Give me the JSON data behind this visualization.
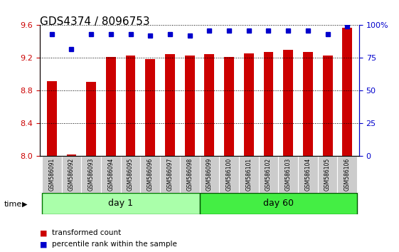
{
  "title": "GDS4374 / 8096753",
  "samples": [
    "GSM586091",
    "GSM586092",
    "GSM586093",
    "GSM586094",
    "GSM586095",
    "GSM586096",
    "GSM586097",
    "GSM586098",
    "GSM586099",
    "GSM586100",
    "GSM586101",
    "GSM586102",
    "GSM586103",
    "GSM586104",
    "GSM586105",
    "GSM586106"
  ],
  "red_values": [
    8.92,
    8.02,
    8.91,
    9.21,
    9.23,
    9.19,
    9.25,
    9.23,
    9.25,
    9.21,
    9.26,
    9.27,
    9.3,
    9.27,
    9.23,
    9.57
  ],
  "blue_values": [
    93,
    82,
    93,
    93,
    93,
    92,
    93,
    92,
    96,
    96,
    96,
    96,
    96,
    96,
    93,
    99
  ],
  "ylim_left": [
    8.0,
    9.6
  ],
  "ylim_right": [
    0,
    100
  ],
  "yticks_left": [
    8.0,
    8.4,
    8.8,
    9.2,
    9.6
  ],
  "yticks_right": [
    0,
    25,
    50,
    75,
    100
  ],
  "day1_samples": 8,
  "day60_samples": 8,
  "day1_label": "day 1",
  "day60_label": "day 60",
  "bar_color": "#cc0000",
  "dot_color": "#0000cc",
  "bar_bottom": 8.0,
  "background_color": "#ffffff",
  "right_axis_color": "#0000cc",
  "left_axis_color": "#cc0000",
  "time_label": "time",
  "legend_red": "transformed count",
  "legend_blue": "percentile rank within the sample",
  "day1_color": "#aaffaa",
  "day60_color": "#44ee44",
  "sample_bg_color": "#cccccc",
  "title_fontsize": 11,
  "tick_fontsize": 8
}
